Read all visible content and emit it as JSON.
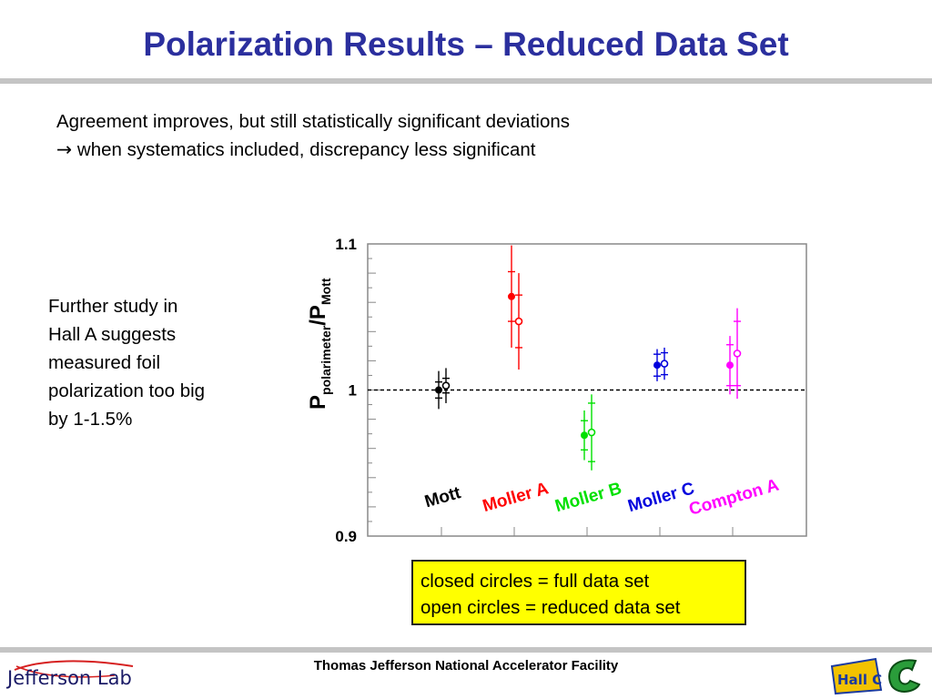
{
  "slide": {
    "title": "Polarization Results – Reduced Data Set",
    "intro_line1": "Agreement improves, but still statistically significant deviations",
    "intro_line2_arrow": "→",
    "intro_line2": " when systematics included, discrepancy less significant",
    "side_note": [
      "Further study in",
      "Hall A suggests",
      "measured foil",
      "polarization too big",
      "by 1-1.5%"
    ],
    "legend_box": [
      "closed circles = full data set",
      "open circles = reduced data set"
    ]
  },
  "footer": {
    "center_text": "Thomas Jefferson National Accelerator Facility",
    "left_logo_text": "Jefferson Lab",
    "right_logo_text": "Hall C"
  },
  "chart_data": {
    "type": "scatter",
    "ylabel_main": "P",
    "ylabel_sub": "polarimeter",
    "ylabel_slash": "/",
    "ylabel_main2": "P",
    "ylabel_sub2": "Mott",
    "ylim": [
      0.9,
      1.1
    ],
    "yticks": [
      {
        "value": 0.9,
        "label": "0.9"
      },
      {
        "value": 1.0,
        "label": "1"
      },
      {
        "value": 1.1,
        "label": "1.1"
      }
    ],
    "reference_line": {
      "y": 1.0,
      "style": "dashed"
    },
    "grid": false,
    "categories": [
      "Mott",
      "Moller A",
      "Moller B",
      "Moller C",
      "Compton A"
    ],
    "category_colors": [
      "#000000",
      "#ff0000",
      "#00e000",
      "#0000dd",
      "#ff00ff"
    ],
    "series": [
      {
        "name": "closed circles = full data set",
        "marker": "closed",
        "points": [
          {
            "category": "Mott",
            "y": 1.0,
            "stat_err": 0.0055,
            "tot_err": 0.013
          },
          {
            "category": "Moller A",
            "y": 1.064,
            "stat_err": 0.017,
            "tot_err": 0.035
          },
          {
            "category": "Moller B",
            "y": 0.969,
            "stat_err": 0.01,
            "tot_err": 0.017
          },
          {
            "category": "Moller C",
            "y": 1.017,
            "stat_err": 0.0075,
            "tot_err": 0.011
          },
          {
            "category": "Compton A",
            "y": 1.017,
            "stat_err": 0.014,
            "tot_err": 0.02
          }
        ]
      },
      {
        "name": "open circles = reduced data set",
        "marker": "open",
        "points": [
          {
            "category": "Mott",
            "y": 1.003,
            "stat_err": 0.005,
            "tot_err": 0.012
          },
          {
            "category": "Moller A",
            "y": 1.047,
            "stat_err": 0.018,
            "tot_err": 0.033
          },
          {
            "category": "Moller B",
            "y": 0.971,
            "stat_err": 0.02,
            "tot_err": 0.026
          },
          {
            "category": "Moller C",
            "y": 1.018,
            "stat_err": 0.0075,
            "tot_err": 0.011
          },
          {
            "category": "Compton A",
            "y": 1.025,
            "stat_err": 0.022,
            "tot_err": 0.031
          }
        ]
      }
    ]
  }
}
